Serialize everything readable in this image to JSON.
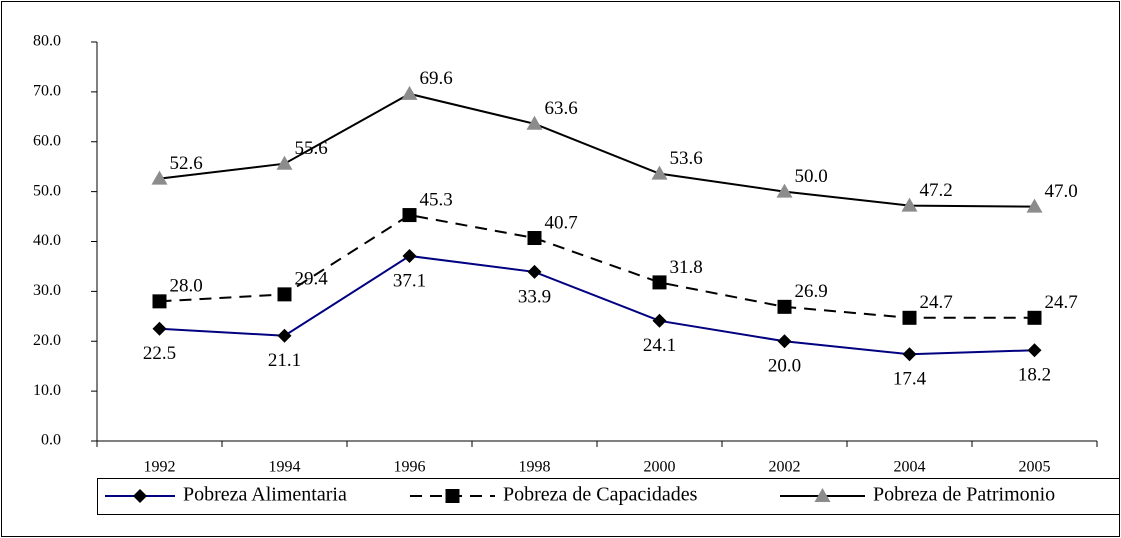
{
  "chart_data": {
    "type": "line",
    "categories": [
      "1992",
      "1994",
      "1996",
      "1998",
      "2000",
      "2002",
      "2004",
      "2005"
    ],
    "series": [
      {
        "name": "Pobreza Alimentaria",
        "color": "#000080",
        "marker": "diamond",
        "marker_color": "#000000",
        "dash": false,
        "values": [
          22.5,
          21.1,
          37.1,
          33.9,
          24.1,
          20.0,
          17.4,
          18.2
        ],
        "value_labels": [
          "22.5",
          "21.1",
          "37.1",
          "33.9",
          "24.1",
          "20.0",
          "17.4",
          "18.2"
        ]
      },
      {
        "name": "Pobreza de Capacidades",
        "color": "#000000",
        "marker": "square",
        "marker_color": "#000000",
        "dash": true,
        "values": [
          28.0,
          29.4,
          45.3,
          40.7,
          31.8,
          26.9,
          24.7,
          24.7
        ],
        "value_labels": [
          "28.0",
          "29.4",
          "45.3",
          "40.7",
          "31.8",
          "26.9",
          "24.7",
          "24.7"
        ]
      },
      {
        "name": "Pobreza de Patrimonio",
        "color": "#000000",
        "marker": "triangle",
        "marker_color": "#8c8c8c",
        "dash": false,
        "values": [
          52.6,
          55.6,
          69.6,
          63.6,
          53.6,
          50.0,
          47.2,
          47.0
        ],
        "value_labels": [
          "52.6",
          "55.6",
          "69.6",
          "63.6",
          "53.6",
          "50.0",
          "47.2",
          "47.0"
        ]
      }
    ],
    "ylim": [
      0,
      80
    ],
    "yticks": [
      {
        "value": 0,
        "label": "0.0"
      },
      {
        "value": 10,
        "label": "10.0"
      },
      {
        "value": 20,
        "label": "20.0"
      },
      {
        "value": 30,
        "label": "30.0"
      },
      {
        "value": 40,
        "label": "40.0"
      },
      {
        "value": 50,
        "label": "50.0"
      },
      {
        "value": 60,
        "label": "60.0"
      },
      {
        "value": 70,
        "label": "70.0"
      },
      {
        "value": 80,
        "label": "80.0"
      }
    ],
    "grid": false,
    "legend": "bottom"
  }
}
